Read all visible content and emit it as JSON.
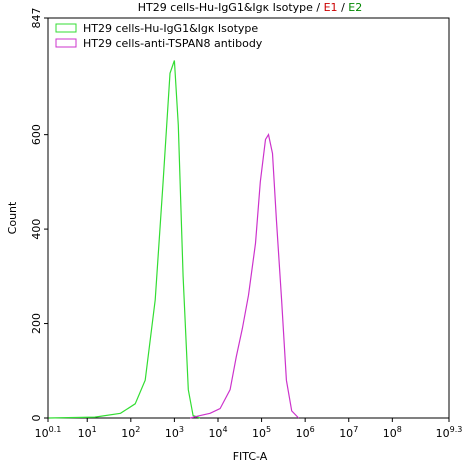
{
  "chart_data": {
    "type": "line",
    "title_parts": [
      {
        "text": "HT29 cells-Hu-IgG1&Igκ Isotype",
        "color": "#000000"
      },
      {
        "text": "/",
        "color": "#000000"
      },
      {
        "text": "E1",
        "color": "#cc0000"
      },
      {
        "text": "/",
        "color": "#000000"
      },
      {
        "text": "E2",
        "color": "#008800"
      }
    ],
    "x_label": "FITC-A",
    "y_label": "Count",
    "x_log_scale": true,
    "xlim": [
      1.259,
      1995262315
    ],
    "ylim": [
      0,
      847
    ],
    "xticks": [
      {
        "value": 1.259,
        "label": "10",
        "exponent": "0.1"
      },
      {
        "value": 10,
        "label": "10",
        "exponent": "1"
      },
      {
        "value": 100,
        "label": "10",
        "exponent": "2"
      },
      {
        "value": 1000,
        "label": "10",
        "exponent": "3"
      },
      {
        "value": 10000,
        "label": "10",
        "exponent": "4"
      },
      {
        "value": 100000,
        "label": "10",
        "exponent": "5"
      },
      {
        "value": 1000000,
        "label": "10",
        "exponent": "6"
      },
      {
        "value": 10000000,
        "label": "10",
        "exponent": "7"
      },
      {
        "value": 100000000,
        "label": "10",
        "exponent": "8"
      },
      {
        "value": 1995262315,
        "label": "10",
        "exponent": "9.3"
      }
    ],
    "yticks": [
      0,
      200,
      400,
      600,
      847
    ],
    "legend": "top-left",
    "series": [
      {
        "name": "HT29 cells-Hu-IgG1&Igκ Isotype",
        "color": "#33dd33",
        "x": [
          1.3,
          15,
          58,
          126,
          214,
          363,
          550,
          794,
          1000,
          1230,
          1585,
          2089,
          2692,
          3890
        ],
        "values": [
          0,
          2,
          10,
          30,
          80,
          250,
          500,
          730,
          757,
          620,
          300,
          60,
          5,
          0
        ]
      },
      {
        "name": "HT29 cells-anti-TSPAN8 antibody",
        "color": "#cc33cc",
        "x": [
          2290,
          3890,
          6600,
          11200,
          19000,
          26300,
          36300,
          50100,
          72400,
          93300,
          123000,
          144500,
          178000,
          219000,
          288000,
          372000,
          490000,
          708000
        ],
        "values": [
          0,
          5,
          10,
          20,
          60,
          130,
          190,
          260,
          370,
          500,
          590,
          600,
          560,
          420,
          250,
          80,
          15,
          0
        ]
      }
    ]
  }
}
